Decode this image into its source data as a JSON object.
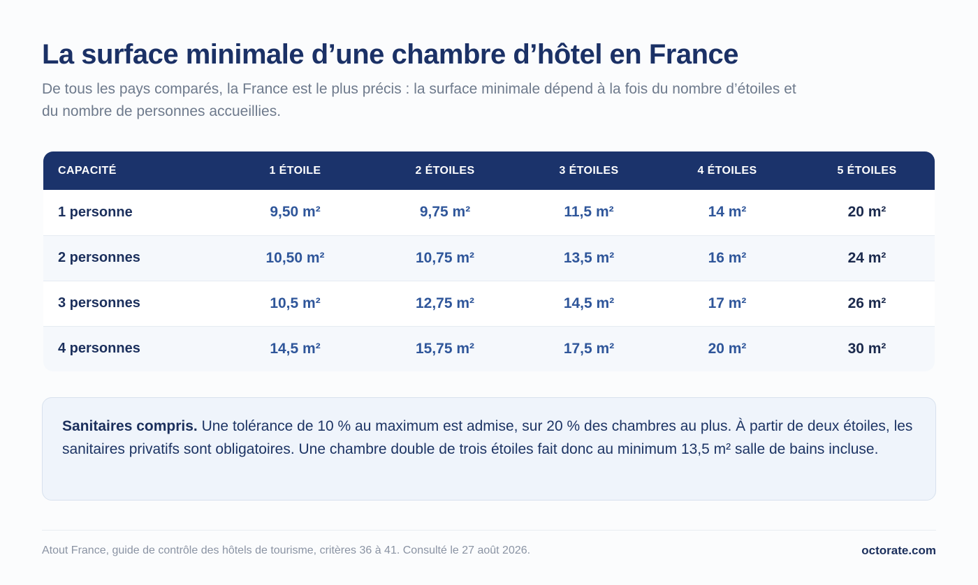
{
  "title": "La surface minimale d’une chambre d’hôtel en France",
  "subtitle": "De tous les pays comparés, la France est le plus précis : la surface minimale dépend à la fois du nombre d’étoiles et du nombre de personnes accueillies.",
  "table": {
    "headers": [
      "CAPACITÉ",
      "1 ÉTOILE",
      "2 ÉTOILES",
      "3 ÉTOILES",
      "4 ÉTOILES",
      "5 ÉTOILES"
    ],
    "rows": [
      {
        "capacity": "1 personne",
        "values": [
          "9,50 m²",
          "9,75 m²",
          "11,5 m²",
          "14 m²",
          "20 m²"
        ]
      },
      {
        "capacity": "2 personnes",
        "values": [
          "10,50 m²",
          "10,75 m²",
          "13,5 m²",
          "16 m²",
          "24 m²"
        ]
      },
      {
        "capacity": "3 personnes",
        "values": [
          "10,5 m²",
          "12,75 m²",
          "14,5 m²",
          "17 m²",
          "26 m²"
        ]
      },
      {
        "capacity": "4 personnes",
        "values": [
          "14,5 m²",
          "15,75 m²",
          "17,5 m²",
          "20 m²",
          "30 m²"
        ]
      }
    ]
  },
  "note": {
    "lead": "Sanitaires compris.",
    "text": " Une tolérance de 10 % au maximum est admise, sur 20 % des chambres au plus. À partir de deux étoiles, les sanitaires privatifs sont obligatoires. Une chambre double de trois étoiles fait donc au minimum 13,5 m² salle de bains incluse."
  },
  "footer": {
    "source": "Atout France, guide de contrôle des hôtels de tourisme, critères 36 à 41. Consulté le 27 août 2026.",
    "brand": "octorate.com"
  },
  "colors": {
    "header_bg": "#1b336b",
    "value_blue": "#2f569a",
    "title": "#1b3166",
    "note_bg": "#eff4fb"
  }
}
